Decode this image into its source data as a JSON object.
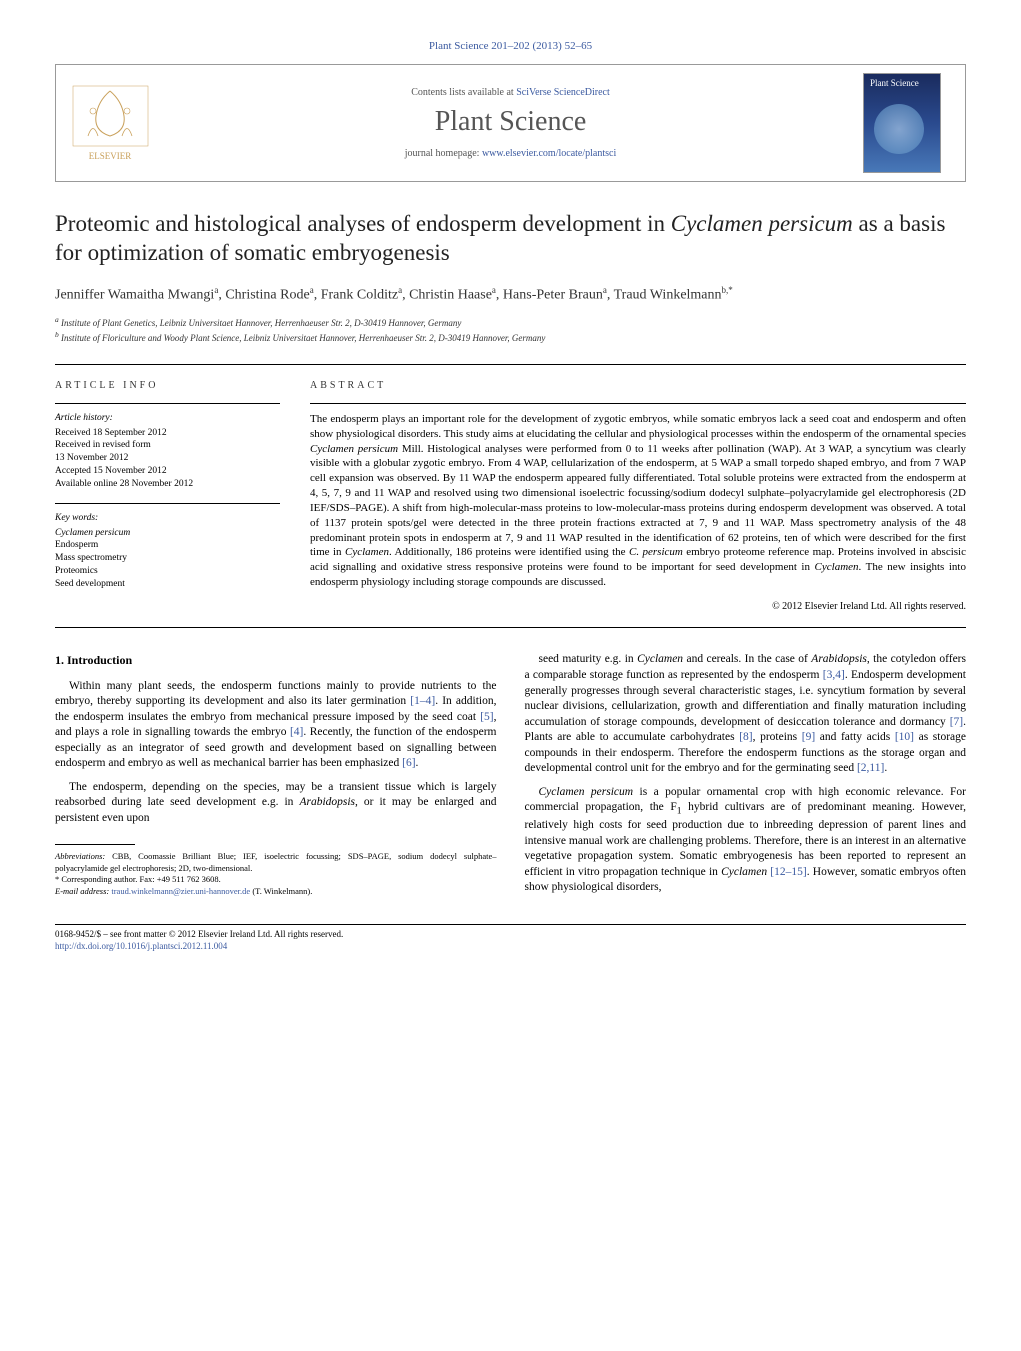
{
  "header": {
    "citation": "Plant Science 201–202 (2013) 52–65"
  },
  "journal_box": {
    "available": "Contents lists available at ",
    "available_link": "SciVerse ScienceDirect",
    "journal_name": "Plant Science",
    "homepage_prefix": "journal homepage: ",
    "homepage_url": "www.elsevier.com/locate/plantsci",
    "publisher": "ELSEVIER",
    "cover_text": "Plant Science"
  },
  "article": {
    "title_part1": "Proteomic and histological analyses of endosperm development in ",
    "title_italic1": "Cyclamen persicum",
    "title_part2": " as a basis for optimization of somatic embryogenesis",
    "authors_html": "Jenniffer Wamaitha Mwangi<sup>a</sup>, Christina Rode<sup>a</sup>, Frank Colditz<sup>a</sup>, Christin Haase<sup>a</sup>, Hans-Peter Braun<sup>a</sup>, Traud Winkelmann<sup>b,*</sup>",
    "affiliations": [
      "a Institute of Plant Genetics, Leibniz Universitaet Hannover, Herrenhaeuser Str. 2, D-30419 Hannover, Germany",
      "b Institute of Floriculture and Woody Plant Science, Leibniz Universitaet Hannover, Herrenhaeuser Str. 2, D-30419 Hannover, Germany"
    ]
  },
  "meta": {
    "info_heading": "ARTICLE INFO",
    "history_label": "Article history:",
    "history": [
      "Received 18 September 2012",
      "Received in revised form",
      "13 November 2012",
      "Accepted 15 November 2012",
      "Available online 28 November 2012"
    ],
    "keywords_label": "Key words:",
    "keywords": [
      "Cyclamen persicum",
      "Endosperm",
      "Mass spectrometry",
      "Proteomics",
      "Seed development"
    ]
  },
  "abstract": {
    "heading": "ABSTRACT",
    "text": "The endosperm plays an important role for the development of zygotic embryos, while somatic embryos lack a seed coat and endosperm and often show physiological disorders. This study aims at elucidating the cellular and physiological processes within the endosperm of the ornamental species Cyclamen persicum Mill. Histological analyses were performed from 0 to 11 weeks after pollination (WAP). At 3 WAP, a syncytium was clearly visible with a globular zygotic embryo. From 4 WAP, cellularization of the endosperm, at 5 WAP a small torpedo shaped embryo, and from 7 WAP cell expansion was observed. By 11 WAP the endosperm appeared fully differentiated. Total soluble proteins were extracted from the endosperm at 4, 5, 7, 9 and 11 WAP and resolved using two dimensional isoelectric focussing/sodium dodecyl sulphate–polyacrylamide gel electrophoresis (2D IEF/SDS–PAGE). A shift from high-molecular-mass proteins to low-molecular-mass proteins during endosperm development was observed. A total of 1137 protein spots/gel were detected in the three protein fractions extracted at 7, 9 and 11 WAP. Mass spectrometry analysis of the 48 predominant protein spots in endosperm at 7, 9 and 11 WAP resulted in the identification of 62 proteins, ten of which were described for the first time in Cyclamen. Additionally, 186 proteins were identified using the C. persicum embryo proteome reference map. Proteins involved in abscisic acid signalling and oxidative stress responsive proteins were found to be important for seed development in Cyclamen. The new insights into endosperm physiology including storage compounds are discussed.",
    "copyright": "© 2012 Elsevier Ireland Ltd. All rights reserved."
  },
  "body": {
    "section_head": "1. Introduction",
    "col1_paras": [
      "Within many plant seeds, the endosperm functions mainly to provide nutrients to the embryo, thereby supporting its development and also its later germination [1–4]. In addition, the endosperm insulates the embryo from mechanical pressure imposed by the seed coat [5], and plays a role in signalling towards the embryo [4]. Recently, the function of the endosperm especially as an integrator of seed growth and development based on signalling between endosperm and embryo as well as mechanical barrier has been emphasized [6].",
      "The endosperm, depending on the species, may be a transient tissue which is largely reabsorbed during late seed development e.g. in Arabidopsis, or it may be enlarged and persistent even upon"
    ],
    "col2_paras": [
      "seed maturity e.g. in Cyclamen and cereals. In the case of Arabidopsis, the cotyledon offers a comparable storage function as represented by the endosperm [3,4]. Endosperm development generally progresses through several characteristic stages, i.e. syncytium formation by several nuclear divisions, cellularization, growth and differentiation and finally maturation including accumulation of storage compounds, development of desiccation tolerance and dormancy [7]. Plants are able to accumulate carbohydrates [8], proteins [9] and fatty acids [10] as storage compounds in their endosperm. Therefore the endosperm functions as the storage organ and developmental control unit for the embryo and for the germinating seed [2,11].",
      "Cyclamen persicum is a popular ornamental crop with high economic relevance. For commercial propagation, the F1 hybrid cultivars are of predominant meaning. However, relatively high costs for seed production due to inbreeding depression of parent lines and intensive manual work are challenging problems. Therefore, there is an interest in an alternative vegetative propagation system. Somatic embryogenesis has been reported to represent an efficient in vitro propagation technique in Cyclamen [12–15]. However, somatic embryos often show physiological disorders,"
    ]
  },
  "footnotes": {
    "abbrev_label": "Abbreviations:",
    "abbrev_text": " CBB, Coomassie Brilliant Blue; IEF, isoelectric focussing; SDS–PAGE, sodium dodecyl sulphate–polyacrylamide gel electrophoresis; 2D, two-dimensional.",
    "corresponding": "* Corresponding author. Fax: +49 511 762 3608.",
    "email_label": "E-mail address: ",
    "email": "traud.winkelmann@zier.uni-hannover.de",
    "email_who": " (T. Winkelmann)."
  },
  "bottom": {
    "line1": "0168-9452/$ – see front matter © 2012 Elsevier Ireland Ltd. All rights reserved.",
    "doi": "http://dx.doi.org/10.1016/j.plantsci.2012.11.004"
  },
  "colors": {
    "link": "#3b5aa0",
    "text": "#000000",
    "gray": "#555555"
  }
}
